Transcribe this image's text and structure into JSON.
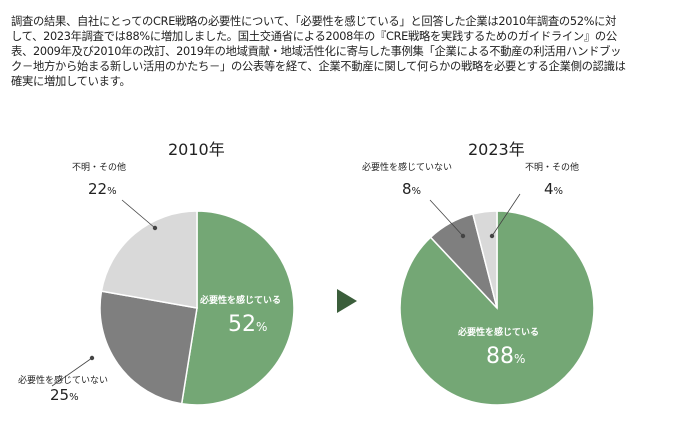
{
  "intro_lines": [
    "調査の結果、自社にとってのCRE戦略の必要性について、「必要性を感じている」と回答した企業は2010年調査の52%に対",
    "して、2023年調査では88%に増加しました。国土交通省による2008年の『CRE戦略を実践するためのガイドライン』の公",
    "表、2009年及び2010年の改訂、2019年の地域貢献・地域活性化に寄与した事例集「企業による不動産の利活用ハンドブッ",
    "ク－地方から始まる新しい活用のかたち－」の公表等を経て、企業不動産に関して何らかの戦略を必要とする企業側の認識は",
    "確実に増加しています。"
  ],
  "percent_sign": "%",
  "chart_data": [
    {
      "type": "pie",
      "title": "2010年",
      "slices": [
        {
          "label": "必要性を感じている",
          "value": 52,
          "color": "#74a775"
        },
        {
          "label": "必要性を感じていない",
          "value": 25,
          "color": "#7f7f7f"
        },
        {
          "label": "不明・その他",
          "value": 22,
          "color": "#d9d9d9"
        }
      ]
    },
    {
      "type": "pie",
      "title": "2023年",
      "slices": [
        {
          "label": "必要性を感じている",
          "value": 88,
          "color": "#74a775"
        },
        {
          "label": "必要性を感じていない",
          "value": 8,
          "color": "#7f7f7f"
        },
        {
          "label": "不明・その他",
          "value": 4,
          "color": "#d9d9d9"
        }
      ]
    }
  ],
  "arrow_color": "#3b5e3b"
}
